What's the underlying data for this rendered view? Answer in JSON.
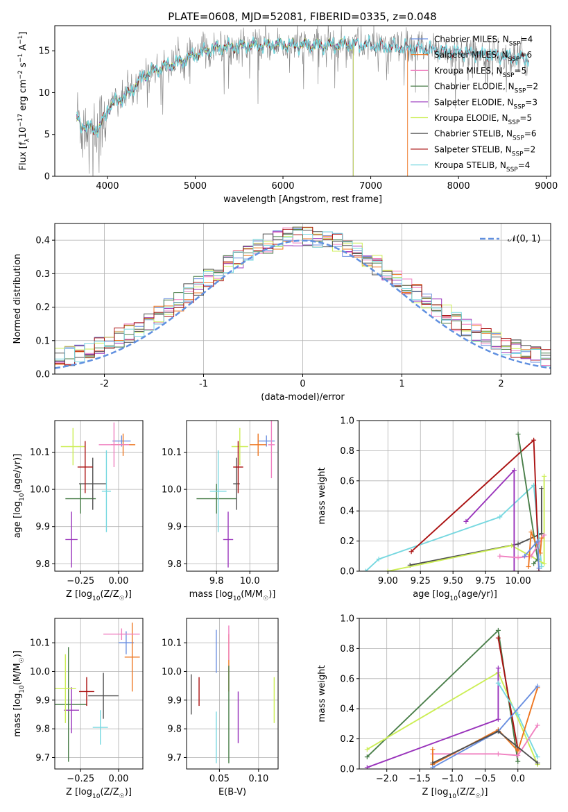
{
  "colors": {
    "cm": "#6a8fe0",
    "sm": "#ee7722",
    "km": "#f080c0",
    "ce": "#4a7f4a",
    "se": "#9933bb",
    "ke": "#ccee55",
    "cs": "#505050",
    "ss": "#aa1111",
    "ks": "#77d8e0",
    "gauss": "#6090e0",
    "grid": "#b0b0b0"
  },
  "chart_data": [
    {
      "id": "spectrum",
      "type": "line",
      "title": "PLATE=0608, MJD=52081, FIBERID=0335, z=0.048",
      "xlabel": "wavelength [Angstrom, rest frame]",
      "ylabel": "Flux [fλ10⁻¹⁷ erg cm⁻² s⁻¹ A⁻¹]",
      "xlim": [
        3400,
        9050
      ],
      "ylim": [
        0,
        18
      ],
      "xticks": [
        4000,
        5000,
        6000,
        7000,
        8000,
        9000
      ],
      "yticks": [
        0,
        5,
        10,
        15
      ],
      "grid": false,
      "legend_position": "top-right",
      "continuum": {
        "x": [
          3650,
          3700,
          3800,
          3900,
          4000,
          4100,
          4200,
          4300,
          4400,
          4500,
          4700,
          4900,
          5100,
          5300,
          5600,
          6000,
          6400,
          6800,
          7200,
          7600,
          8000,
          8400,
          8800
        ],
        "y": [
          7.0,
          6.2,
          5.8,
          5.5,
          8.0,
          9.0,
          9.5,
          10.5,
          12.0,
          12.5,
          13.3,
          14.0,
          15.0,
          15.4,
          15.6,
          15.7,
          15.6,
          15.8,
          15.5,
          15.2,
          14.8,
          14.5,
          14.0
        ]
      },
      "observed_noise_amplitude": 1.4,
      "series": [
        {
          "name": "Chabrier MILES, N_SSP=4",
          "color": "cm",
          "end": 8800
        },
        {
          "name": "Salpeter MILES, N_SSP=6",
          "color": "sm",
          "end": 7420
        },
        {
          "name": "Kroupa MILES, N_SSP=5",
          "color": "km",
          "end": 8800
        },
        {
          "name": "Chabrier ELODIE, N_SSP=2",
          "color": "ce",
          "end": 6800
        },
        {
          "name": "Salpeter ELODIE, N_SSP=3",
          "color": "se",
          "end": 6800
        },
        {
          "name": "Kroupa ELODIE, N_SSP=5",
          "color": "ke",
          "end": 6800
        },
        {
          "name": "Chabrier STELIB, N_SSP=6",
          "color": "cs",
          "end": 8800
        },
        {
          "name": "Salpeter STELIB, N_SSP=2",
          "color": "ss",
          "end": 8800
        },
        {
          "name": "Kroupa STELIB, N_SSP=4",
          "color": "ks",
          "end": 8800
        }
      ]
    },
    {
      "id": "residuals",
      "type": "histogram",
      "xlabel": "(data-model)/error",
      "ylabel": "Normed distribution",
      "xlim": [
        -2.5,
        2.5
      ],
      "ylim": [
        0,
        0.45
      ],
      "xticks": [
        -2,
        -1,
        0,
        1,
        2
      ],
      "yticks": [
        0.0,
        0.1,
        0.2,
        0.3,
        0.4
      ],
      "grid": true,
      "legend_position": "top-right",
      "legend": [
        "𝒩(0, 1)"
      ],
      "bin_width": 0.1,
      "series_colors": [
        "cm",
        "sm",
        "km",
        "ce",
        "se",
        "ke",
        "cs",
        "ss",
        "ks"
      ],
      "reference": {
        "type": "gaussian",
        "mean": 0,
        "sigma": 1,
        "color": "gauss",
        "style": "dashed"
      }
    },
    {
      "id": "age_vs_Z",
      "type": "errorbar",
      "xlabel": "Z [log₁₀(Z/Z☉)]",
      "ylabel": "age  [log₁₀(age/yr)]",
      "xlim": [
        -0.42,
        0.16
      ],
      "ylim": [
        9.78,
        10.185
      ],
      "xticks": [
        -0.25,
        0.0
      ],
      "yticks": [
        9.8,
        9.9,
        10.0,
        10.1
      ],
      "grid": true,
      "points": [
        {
          "c": "cm",
          "x": 0.02,
          "y": 10.13,
          "ex": 0.06,
          "ey": 0.015
        },
        {
          "c": "sm",
          "x": 0.03,
          "y": 10.12,
          "ex": 0.08,
          "ey": 0.03
        },
        {
          "c": "km",
          "x": -0.03,
          "y": 10.12,
          "ex": 0.1,
          "ey": 0.06
        },
        {
          "c": "ce",
          "x": -0.25,
          "y": 9.975,
          "ex": 0.1,
          "ey": 0.04
        },
        {
          "c": "se",
          "x": -0.31,
          "y": 9.865,
          "ex": 0.04,
          "ey": 0.075
        },
        {
          "c": "ke",
          "x": -0.3,
          "y": 10.115,
          "ex": 0.08,
          "ey": 0.05
        },
        {
          "c": "cs",
          "x": -0.17,
          "y": 10.015,
          "ex": 0.09,
          "ey": 0.07
        },
        {
          "c": "ss",
          "x": -0.22,
          "y": 10.06,
          "ex": 0.05,
          "ey": 0.07
        },
        {
          "c": "ks",
          "x": -0.08,
          "y": 9.995,
          "ex": 0.03,
          "ey": 0.11
        }
      ]
    },
    {
      "id": "age_vs_mass",
      "type": "errorbar",
      "xlabel": "mass [log₁₀(M/M☉)]",
      "ylabel": "",
      "xlim": [
        9.62,
        10.17
      ],
      "ylim": [
        9.78,
        10.185
      ],
      "xticks": [
        9.8,
        10.0
      ],
      "yticks": [
        9.8,
        9.9,
        10.0,
        10.1
      ],
      "grid": true,
      "points": [
        {
          "c": "cm",
          "x": 10.1,
          "y": 10.13,
          "ex": 0.05,
          "ey": 0.015
        },
        {
          "c": "sm",
          "x": 10.05,
          "y": 10.12,
          "ex": 0.05,
          "ey": 0.03
        },
        {
          "c": "km",
          "x": 10.13,
          "y": 10.12,
          "ex": 0.02,
          "ey": 0.09
        },
        {
          "c": "ce",
          "x": 9.8,
          "y": 9.975,
          "ex": 0.12,
          "ey": 0.04
        },
        {
          "c": "se",
          "x": 9.87,
          "y": 9.865,
          "ex": 0.03,
          "ey": 0.075
        },
        {
          "c": "ke",
          "x": 9.94,
          "y": 10.115,
          "ex": 0.05,
          "ey": 0.05
        },
        {
          "c": "cs",
          "x": 9.92,
          "y": 10.015,
          "ex": 0.02,
          "ey": 0.07
        },
        {
          "c": "ss",
          "x": 9.93,
          "y": 10.06,
          "ex": 0.03,
          "ey": 0.07
        },
        {
          "c": "ks",
          "x": 9.81,
          "y": 9.995,
          "ex": 0.05,
          "ey": 0.11
        }
      ]
    },
    {
      "id": "weight_vs_age",
      "type": "line",
      "xlabel": "age  [log₁₀(age/yr)]",
      "ylabel": "mass weight",
      "xlim": [
        8.78,
        10.25
      ],
      "ylim": [
        0,
        1
      ],
      "xticks": [
        9.0,
        9.25,
        9.5,
        9.75,
        10.0
      ],
      "yticks": [
        0.0,
        0.2,
        0.4,
        0.6,
        0.8,
        1.0
      ],
      "grid": true,
      "series": [
        {
          "c": "cs",
          "x": [
            9.17,
            10.0,
            10.18,
            10.18
          ],
          "y": [
            0.04,
            0.18,
            0.25,
            0.55
          ]
        },
        {
          "c": "ks",
          "x": [
            8.83,
            8.93,
            9.86,
            10.12,
            10.18
          ],
          "y": [
            0.0,
            0.08,
            0.36,
            0.57,
            0.03
          ]
        },
        {
          "c": "ke",
          "x": [
            9.0,
            9.95,
            10.2,
            10.2
          ],
          "y": [
            0.0,
            0.17,
            0.05,
            0.63
          ]
        },
        {
          "c": "ss",
          "x": [
            9.18,
            10.12,
            10.16
          ],
          "y": [
            0.13,
            0.87,
            0.0
          ]
        },
        {
          "c": "ce",
          "x": [
            10.0,
            10.15,
            10.12
          ],
          "y": [
            0.91,
            0.08,
            0.05
          ]
        },
        {
          "c": "se",
          "x": [
            9.6,
            9.97,
            9.97
          ],
          "y": [
            0.33,
            0.67,
            0.0
          ]
        },
        {
          "c": "km",
          "x": [
            9.86,
            10.0,
            10.1,
            10.2
          ],
          "y": [
            0.1,
            0.09,
            0.1,
            0.24
          ]
        },
        {
          "c": "sm",
          "x": [
            10.08,
            10.1,
            10.17,
            10.18
          ],
          "y": [
            0.03,
            0.26,
            0.12,
            0.22
          ]
        },
        {
          "c": "cm",
          "x": [
            10.05,
            10.15,
            10.16
          ],
          "y": [
            0.1,
            0.2,
            0.02
          ]
        }
      ]
    },
    {
      "id": "mass_vs_Z",
      "type": "errorbar",
      "xlabel": "Z [log₁₀(Z/Z☉)]",
      "ylabel": "mass [log₁₀(M/M☉)]",
      "xlim": [
        -0.42,
        0.16
      ],
      "ylim": [
        9.66,
        10.185
      ],
      "xticks": [
        -0.25,
        0.0
      ],
      "yticks": [
        9.7,
        9.8,
        9.9,
        10.0,
        10.1
      ],
      "grid": true,
      "points": [
        {
          "c": "cm",
          "x": 0.05,
          "y": 10.1,
          "ex": 0.05,
          "ey": 0.04
        },
        {
          "c": "sm",
          "x": 0.09,
          "y": 10.05,
          "ex": 0.05,
          "ey": 0.12
        },
        {
          "c": "km",
          "x": 0.02,
          "y": 10.13,
          "ex": 0.12,
          "ey": 0.02
        },
        {
          "c": "ce",
          "x": -0.33,
          "y": 9.885,
          "ex": 0.12,
          "ey": 0.2
        },
        {
          "c": "se",
          "x": -0.31,
          "y": 9.865,
          "ex": 0.05,
          "ey": 0.08
        },
        {
          "c": "ke",
          "x": -0.35,
          "y": 9.94,
          "ex": 0.07,
          "ey": 0.12
        },
        {
          "c": "cs",
          "x": -0.1,
          "y": 9.915,
          "ex": 0.1,
          "ey": 0.08
        },
        {
          "c": "ss",
          "x": -0.21,
          "y": 9.93,
          "ex": 0.05,
          "ey": 0.05
        },
        {
          "c": "ks",
          "x": -0.12,
          "y": 9.805,
          "ex": 0.05,
          "ey": 0.06
        }
      ]
    },
    {
      "id": "mass_vs_EBV",
      "type": "errorbar",
      "xlabel": "E(B-V)",
      "ylabel": "",
      "xlim": [
        0.008,
        0.125
      ],
      "ylim": [
        9.66,
        10.185
      ],
      "xticks": [
        0.05,
        0.1
      ],
      "yticks": [
        9.7,
        9.8,
        9.9,
        10.0,
        10.1
      ],
      "grid": true,
      "points": [
        {
          "c": "cm",
          "x": 0.046,
          "y": 10.07,
          "ex": 0,
          "ey": 0.075
        },
        {
          "c": "sm",
          "x": 0.062,
          "y": 10.03,
          "ex": 0,
          "ey": 0.1
        },
        {
          "c": "km",
          "x": 0.062,
          "y": 10.1,
          "ex": 0,
          "ey": 0.06
        },
        {
          "c": "ce",
          "x": 0.062,
          "y": 9.85,
          "ex": 0,
          "ey": 0.17
        },
        {
          "c": "se",
          "x": 0.074,
          "y": 9.84,
          "ex": 0,
          "ey": 0.09
        },
        {
          "c": "ke",
          "x": 0.12,
          "y": 9.9,
          "ex": 0,
          "ey": 0.08
        },
        {
          "c": "cs",
          "x": 0.014,
          "y": 9.92,
          "ex": 0,
          "ey": 0.07
        },
        {
          "c": "ss",
          "x": 0.024,
          "y": 9.93,
          "ex": 0,
          "ey": 0.05
        },
        {
          "c": "ks",
          "x": 0.046,
          "y": 9.77,
          "ex": 0,
          "ey": 0.09
        }
      ]
    },
    {
      "id": "weight_vs_Z",
      "type": "line",
      "xlabel": "Z [log₁₀(Z/Z☉)]",
      "ylabel": "mass weight",
      "xlim": [
        -2.42,
        0.5
      ],
      "ylim": [
        0,
        1
      ],
      "xticks": [
        -2.0,
        -1.5,
        -1.0,
        -0.5,
        0.0
      ],
      "yticks": [
        0.0,
        0.2,
        0.4,
        0.6,
        0.8,
        1.0
      ],
      "grid": true,
      "series": [
        {
          "c": "ce",
          "x": [
            -2.3,
            -0.3,
            0.0
          ],
          "y": [
            0.08,
            0.92,
            0.05
          ]
        },
        {
          "c": "ke",
          "x": [
            -2.3,
            -0.3,
            0.3
          ],
          "y": [
            0.13,
            0.64,
            0.03
          ]
        },
        {
          "c": "se",
          "x": [
            -2.3,
            -0.3,
            -0.3
          ],
          "y": [
            0.01,
            0.33,
            0.67
          ]
        },
        {
          "c": "ss",
          "x": [
            -0.3,
            0.0
          ],
          "y": [
            0.87,
            0.13
          ]
        },
        {
          "c": "ks",
          "x": [
            -0.3,
            -0.3,
            0.0,
            0.3
          ],
          "y": [
            0.57,
            0.57,
            0.36,
            0.08
          ]
        },
        {
          "c": "km",
          "x": [
            -1.3,
            -0.3,
            0.0,
            0.3
          ],
          "y": [
            0.1,
            0.1,
            0.09,
            0.29
          ]
        },
        {
          "c": "sm",
          "x": [
            -1.3,
            -1.3,
            -0.3,
            0.0,
            0.3
          ],
          "y": [
            0.13,
            0.03,
            0.26,
            0.12,
            0.54
          ]
        },
        {
          "c": "cm",
          "x": [
            -1.3,
            -0.3,
            0.3
          ],
          "y": [
            0.01,
            0.25,
            0.55
          ]
        },
        {
          "c": "cs",
          "x": [
            -1.3,
            -0.3,
            0.3
          ],
          "y": [
            0.04,
            0.25,
            0.04
          ]
        }
      ]
    }
  ]
}
